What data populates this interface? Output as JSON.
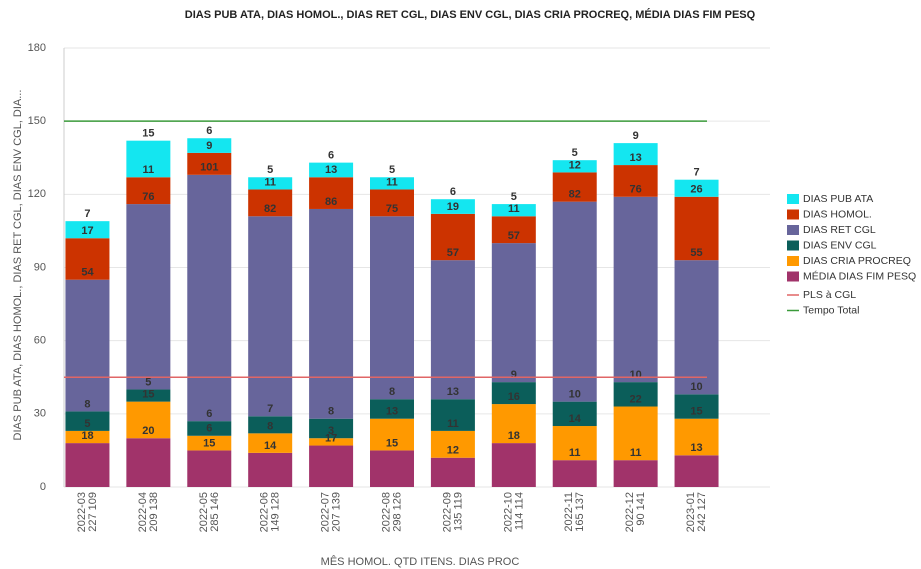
{
  "chart_data": {
    "type": "stacked_bar",
    "title": "DIAS PUB ATA, DIAS HOMOL., DIAS RET CGL, DIAS ENV CGL, DIAS CRIA PROCREQ, MÉDIA DIAS FIM PESQ",
    "x_label": "MÊS HOMOL. QTD ITENS. DIAS PROC",
    "y_label": "DIAS PUB ATA, DIAS HOMOL., DIAS RET CGL, DIAS ENV CGL, DIA...",
    "categories": [
      "2022-03\n227 109",
      "2022-04\n209 138",
      "2022-05\n285 146",
      "2022-06\n149 128",
      "2022-07\n207 139",
      "2022-08\n298 126",
      "2022-09\n135 119",
      "2022-10\n114 114",
      "2022-11\n165 137",
      "2022-12\n90 141",
      "2023-01\n242 127"
    ],
    "series": [
      {
        "name": "MÉDIA DIAS FIM PESQ",
        "color": "#a1336a",
        "values": [
          18,
          20,
          15,
          14,
          17,
          15,
          12,
          18,
          11,
          11,
          13
        ]
      },
      {
        "name": "DIAS CRIA PROCREQ",
        "color": "#ff9900",
        "values": [
          5,
          15,
          6,
          8,
          3,
          13,
          11,
          16,
          14,
          22,
          15
        ]
      },
      {
        "name": "DIAS ENV CGL",
        "color": "#0b5e5a",
        "values": [
          8,
          5,
          6,
          7,
          8,
          8,
          13,
          9,
          10,
          10,
          10
        ]
      },
      {
        "name": "DIAS RET CGL",
        "color": "#67659b",
        "values": [
          54,
          76,
          101,
          82,
          86,
          75,
          57,
          57,
          82,
          76,
          55
        ]
      },
      {
        "name": "DIAS HOMOL.",
        "color": "#cc3300",
        "values": [
          17,
          11,
          9,
          11,
          13,
          11,
          19,
          11,
          12,
          13,
          26
        ]
      },
      {
        "name": "DIAS PUB ATA",
        "color": "#14e6f0",
        "values": [
          7,
          15,
          6,
          5,
          6,
          5,
          6,
          5,
          5,
          9,
          7
        ]
      }
    ],
    "reference_lines": [
      {
        "name": "PLS à CGL",
        "value": 45,
        "color": "#e06666"
      },
      {
        "name": "Tempo Total",
        "value": 150,
        "color": "#3a9a3a"
      }
    ],
    "ylim": [
      0,
      180
    ],
    "yticks": [
      0,
      30,
      60,
      90,
      120,
      150,
      180
    ],
    "grid": true
  }
}
